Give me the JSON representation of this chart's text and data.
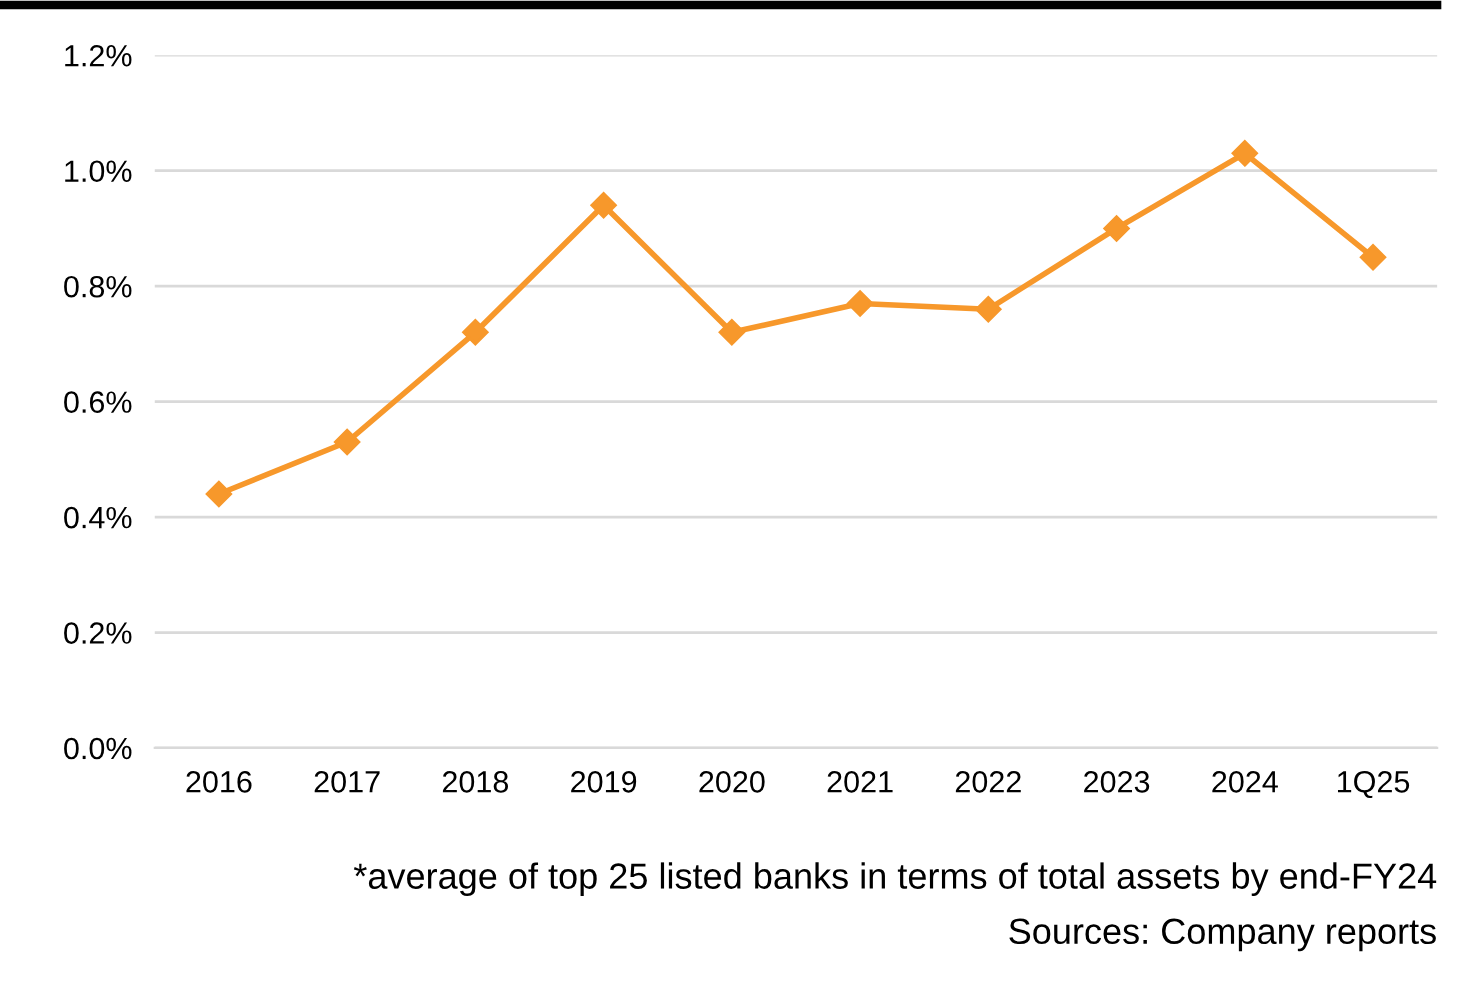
{
  "chart_data": {
    "type": "line",
    "categories": [
      "2016",
      "2017",
      "2018",
      "2019",
      "2020",
      "2021",
      "2022",
      "2023",
      "2024",
      "1Q25"
    ],
    "series": [
      {
        "color": "#f7982b",
        "values": [
          0.44,
          0.53,
          0.72,
          0.94,
          0.72,
          0.77,
          0.76,
          0.9,
          1.03,
          0.85
        ]
      }
    ],
    "ylim": [
      0,
      1.2
    ],
    "yticks": [
      {
        "value": 0,
        "label": "0.0%"
      },
      {
        "value": 0.2,
        "label": "0.2%"
      },
      {
        "value": 0.4,
        "label": "0.4%"
      },
      {
        "value": 0.6,
        "label": "0.6%"
      },
      {
        "value": 0.8,
        "label": "0.8%"
      },
      {
        "value": 1.0,
        "label": "1.0%"
      },
      {
        "value": 1.2,
        "label": "1.2%"
      }
    ],
    "grid": "y",
    "marker": "diamond",
    "line_style": "solid",
    "legend": false,
    "annotations": [
      "*average of top 25 listed banks in terms of total assets by end-FY24",
      "Sources: Company reports"
    ]
  }
}
